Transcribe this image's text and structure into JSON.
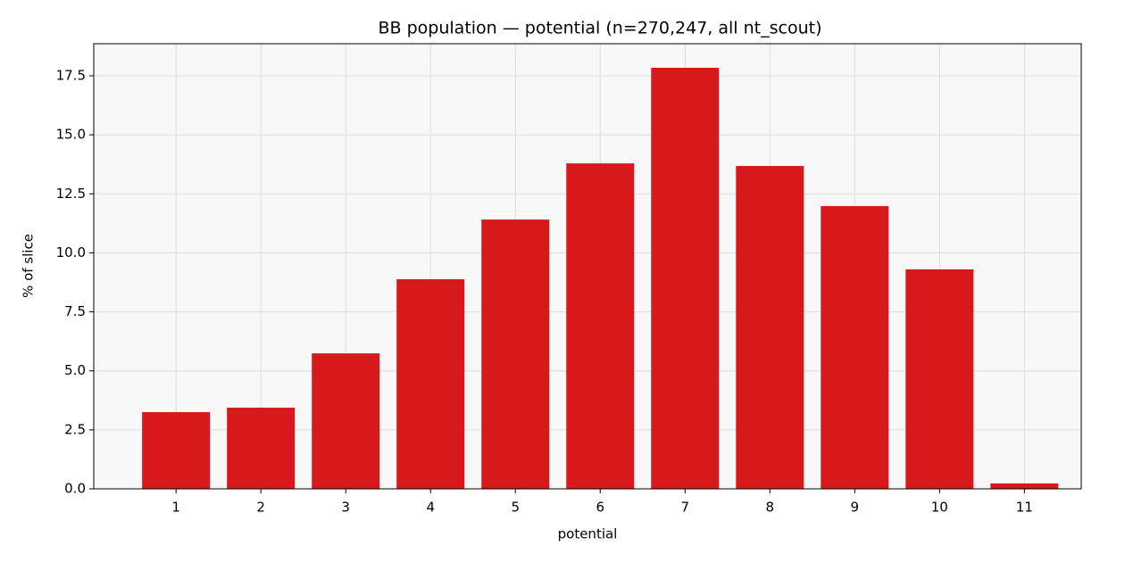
{
  "chart_data": {
    "type": "bar",
    "title": "BB population — potential (n=270,247, all nt_scout)",
    "x_label": "potential",
    "y_label": "% of slice",
    "x": [
      1,
      2,
      3,
      4,
      5,
      6,
      7,
      8,
      9,
      10,
      11
    ],
    "values": [
      3.25,
      3.44,
      5.74,
      8.88,
      11.41,
      13.79,
      17.84,
      13.68,
      11.98,
      9.3,
      0.23
    ],
    "bar_width": 0.8,
    "color": "#d7191c",
    "xlim": [
      0.03,
      11.67
    ],
    "xticks": [
      1,
      2,
      3,
      4,
      5,
      6,
      7,
      8,
      9,
      10,
      11
    ],
    "ylim": [
      0,
      18.86
    ],
    "yticks": [
      {
        "value": 0,
        "label": "0.0"
      },
      2.5,
      {
        "value": 5,
        "label": "5.0"
      },
      7.5,
      {
        "value": 10,
        "label": "10.0"
      },
      12.5,
      {
        "value": 15,
        "label": "15.0"
      },
      17.5
    ],
    "grid": true
  }
}
